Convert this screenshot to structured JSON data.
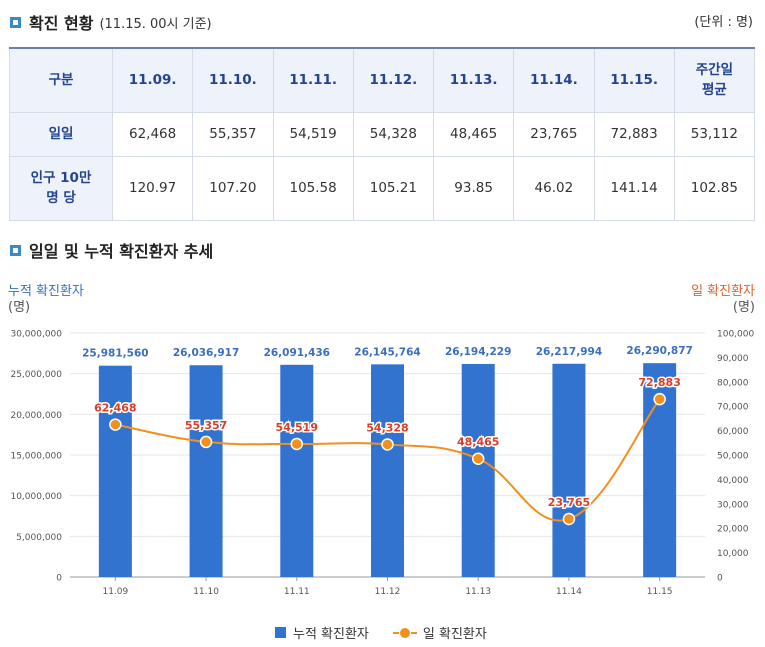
{
  "section1": {
    "title": "확진 현황",
    "subtitle": "(11.15. 00시 기준)",
    "unit": "(단위 : 명)"
  },
  "table": {
    "headers": [
      "구분",
      "11.09.",
      "11.10.",
      "11.11.",
      "11.12.",
      "11.13.",
      "11.14.",
      "11.15.",
      "주간일\n평균"
    ],
    "rows": [
      {
        "label": "일일",
        "values": [
          "62,468",
          "55,357",
          "54,519",
          "54,328",
          "48,465",
          "23,765",
          "72,883",
          "53,112"
        ]
      },
      {
        "label": "인구 10만\n명 당",
        "values": [
          "120.97",
          "107.20",
          "105.58",
          "105.21",
          "93.85",
          "46.02",
          "141.14",
          "102.85"
        ]
      }
    ]
  },
  "section2": {
    "title": "일일 및 누적 확진환자 추세"
  },
  "colors": {
    "bar": "#3373d0",
    "line": "#f2901e",
    "point_label": "#d8402a",
    "bar_label": "#3b6ec0",
    "accent": "#3a8ac8"
  },
  "chart_data": {
    "type": "bar",
    "title": "",
    "categories": [
      "11.09",
      "11.10",
      "11.11",
      "11.12",
      "11.13",
      "11.14",
      "11.15"
    ],
    "series": [
      {
        "name": "누적 확진환자",
        "type": "bar",
        "axis": "left",
        "values": [
          25981560,
          26036917,
          26091436,
          26145764,
          26194229,
          26217994,
          26290877
        ],
        "labels": [
          "25,981,560",
          "26,036,917",
          "26,091,436",
          "26,145,764",
          "26,194,229",
          "26,217,994",
          "26,290,877"
        ]
      },
      {
        "name": "일 확진환자",
        "type": "line",
        "axis": "right",
        "values": [
          62468,
          55357,
          54519,
          54328,
          48465,
          23765,
          72883
        ],
        "labels": [
          "62,468",
          "55,357",
          "54,519",
          "54,328",
          "48,465",
          "23,765",
          "72,883"
        ]
      }
    ],
    "ylabel_left": "누적 확진환자",
    "ylabel_left_unit": "(명)",
    "ylabel_right": "일 확진환자",
    "ylabel_right_unit": "(명)",
    "ylim_left": [
      0,
      30000000
    ],
    "ylim_right": [
      0,
      100000
    ],
    "yticks_left": [
      "0",
      "5,000,000",
      "10,000,000",
      "15,000,000",
      "20,000,000",
      "25,000,000",
      "30,000,000"
    ],
    "yticks_right": [
      "0",
      "10,000",
      "20,000",
      "30,000",
      "40,000",
      "50,000",
      "60,000",
      "70,000",
      "80,000",
      "90,000",
      "100,000"
    ],
    "grid": true,
    "legend_position": "bottom"
  }
}
